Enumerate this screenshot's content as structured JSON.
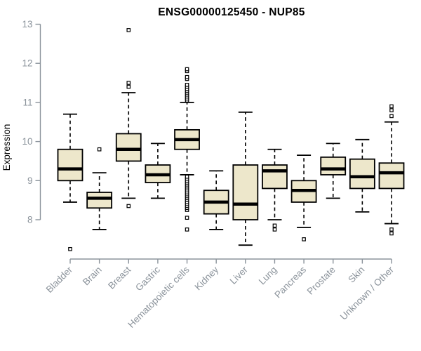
{
  "chart_data": {
    "type": "boxplot",
    "title": "ENSG00000125450 - NUP85",
    "xlabel": "",
    "ylabel": "Expression",
    "yticks": [
      8,
      9,
      10,
      11,
      12,
      13
    ],
    "axis_value_range": [
      8,
      13
    ],
    "panel_value_range": [
      7.1,
      13.05
    ],
    "grid": false,
    "legend": "none",
    "categories": [
      "Bladder",
      "Brain",
      "Breast",
      "Gastric",
      "Hematopoietic cells",
      "Kidney",
      "Liver",
      "Lung",
      "Pancreas",
      "Prostate",
      "Skin",
      "Unknown / Other"
    ],
    "series": [
      {
        "category": "Bladder",
        "whisker_low": 8.45,
        "q1": 9.0,
        "median": 9.3,
        "q3": 9.8,
        "whisker_high": 10.7,
        "outliers": [
          7.25
        ]
      },
      {
        "category": "Brain",
        "whisker_low": 7.75,
        "q1": 8.3,
        "median": 8.55,
        "q3": 8.7,
        "whisker_high": 9.2,
        "outliers": [
          9.8
        ]
      },
      {
        "category": "Breast",
        "whisker_low": 8.55,
        "q1": 9.5,
        "median": 9.8,
        "q3": 10.2,
        "whisker_high": 11.25,
        "outliers": [
          8.35,
          11.4,
          11.5,
          12.85
        ]
      },
      {
        "category": "Gastric",
        "whisker_low": 8.55,
        "q1": 8.95,
        "median": 9.15,
        "q3": 9.4,
        "whisker_high": 9.95,
        "outliers": []
      },
      {
        "category": "Hematopoietic cells",
        "whisker_low": 9.15,
        "q1": 9.8,
        "median": 10.05,
        "q3": 10.3,
        "whisker_high": 11.0,
        "outliers": [
          7.75,
          8.05,
          8.25,
          8.3,
          8.35,
          8.4,
          8.45,
          8.5,
          8.55,
          8.6,
          8.65,
          8.7,
          8.75,
          8.8,
          8.85,
          8.9,
          8.95,
          9.0,
          9.05,
          9.1,
          11.05,
          11.1,
          11.15,
          11.2,
          11.25,
          11.3,
          11.35,
          11.4,
          11.45,
          11.6,
          11.65,
          11.8,
          11.85
        ]
      },
      {
        "category": "Kidney",
        "whisker_low": 7.75,
        "q1": 8.15,
        "median": 8.45,
        "q3": 8.75,
        "whisker_high": 9.25,
        "outliers": []
      },
      {
        "category": "Liver",
        "whisker_low": 7.35,
        "q1": 8.0,
        "median": 8.4,
        "q3": 9.4,
        "whisker_high": 10.75,
        "outliers": []
      },
      {
        "category": "Lung",
        "whisker_low": 8.0,
        "q1": 8.8,
        "median": 9.25,
        "q3": 9.4,
        "whisker_high": 9.8,
        "outliers": [
          7.75,
          7.85
        ]
      },
      {
        "category": "Pancreas",
        "whisker_low": 7.8,
        "q1": 8.45,
        "median": 8.75,
        "q3": 9.0,
        "whisker_high": 9.65,
        "outliers": [
          7.5
        ]
      },
      {
        "category": "Prostate",
        "whisker_low": 8.55,
        "q1": 9.15,
        "median": 9.3,
        "q3": 9.6,
        "whisker_high": 9.95,
        "outliers": []
      },
      {
        "category": "Skin",
        "whisker_low": 8.2,
        "q1": 8.8,
        "median": 9.1,
        "q3": 9.55,
        "whisker_high": 10.05,
        "outliers": []
      },
      {
        "category": "Unknown / Other",
        "whisker_low": 7.9,
        "q1": 8.8,
        "median": 9.2,
        "q3": 9.45,
        "whisker_high": 10.5,
        "outliers": [
          7.65,
          7.75,
          10.65,
          10.8,
          10.9
        ]
      }
    ],
    "colors": {
      "box_fill": "#EDE7CB",
      "box_stroke": "#000000",
      "median_color": "#000000",
      "whisker_color": "#000000",
      "outlier_stroke": "#000000",
      "outlier_fill": "#ffffff",
      "axis_color": "#8B939B",
      "tick_label_color": "#8B939B",
      "category_label_color": "#8B939B",
      "title_color": "#000000",
      "background": "#ffffff"
    }
  }
}
